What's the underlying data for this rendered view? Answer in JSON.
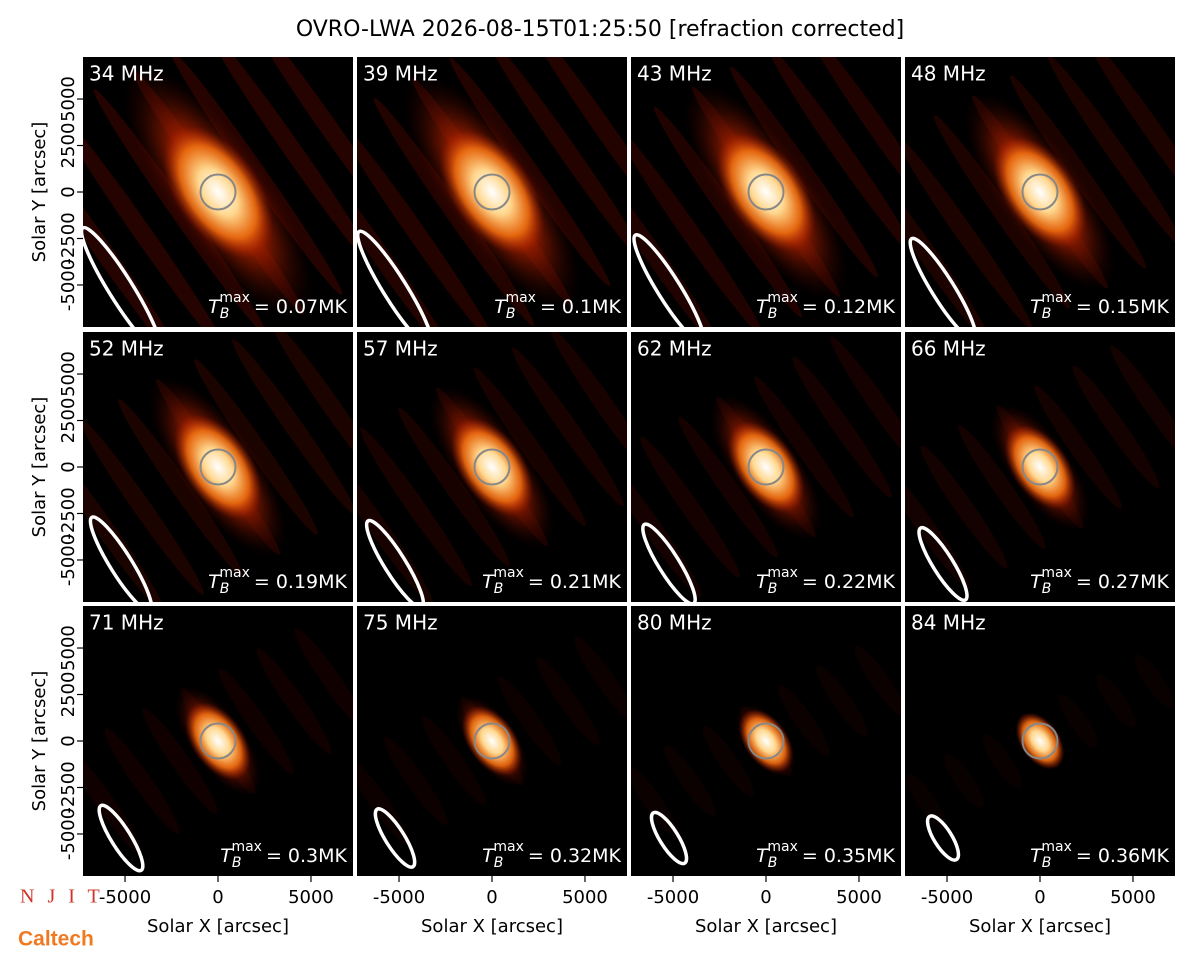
{
  "title": "OVRO-LWA 2026-08-15T01:25:50 [refraction corrected]",
  "logos": [
    "N J I T",
    "Caltech"
  ],
  "chart_data": [
    {
      "type": "image",
      "title": "34 MHz",
      "annotation": {
        "symbol": "T",
        "subscript": "B",
        "superscript": "max",
        "text": "= 0.07MK"
      },
      "xlim": [
        -7260,
        7260
      ],
      "ylim": [
        -7260,
        7260
      ],
      "yticks": [
        -5000,
        -2500,
        0,
        2500,
        5000
      ],
      "ylabel": "Solar Y [arcsec]"
    },
    {
      "type": "image",
      "title": "39 MHz",
      "annotation": {
        "symbol": "T",
        "subscript": "B",
        "superscript": "max",
        "text": "= 0.1MK"
      },
      "xlim": [
        -7260,
        7260
      ],
      "ylim": [
        -7260,
        7260
      ]
    },
    {
      "type": "image",
      "title": "43 MHz",
      "annotation": {
        "symbol": "T",
        "subscript": "B",
        "superscript": "max",
        "text": "= 0.12MK"
      },
      "xlim": [
        -7260,
        7260
      ],
      "ylim": [
        -7260,
        7260
      ]
    },
    {
      "type": "image",
      "title": "48 MHz",
      "annotation": {
        "symbol": "T",
        "subscript": "B",
        "superscript": "max",
        "text": "= 0.15MK"
      },
      "xlim": [
        -7260,
        7260
      ],
      "ylim": [
        -7260,
        7260
      ]
    },
    {
      "type": "image",
      "title": "52 MHz",
      "annotation": {
        "symbol": "T",
        "subscript": "B",
        "superscript": "max",
        "text": "= 0.19MK"
      },
      "xlim": [
        -7260,
        7260
      ],
      "ylim": [
        -7260,
        7260
      ],
      "yticks": [
        -5000,
        -2500,
        0,
        2500,
        5000
      ],
      "ylabel": "Solar Y [arcsec]"
    },
    {
      "type": "image",
      "title": "57 MHz",
      "annotation": {
        "symbol": "T",
        "subscript": "B",
        "superscript": "max",
        "text": "= 0.21MK"
      },
      "xlim": [
        -7260,
        7260
      ],
      "ylim": [
        -7260,
        7260
      ]
    },
    {
      "type": "image",
      "title": "62 MHz",
      "annotation": {
        "symbol": "T",
        "subscript": "B",
        "superscript": "max",
        "text": "= 0.22MK"
      },
      "xlim": [
        -7260,
        7260
      ],
      "ylim": [
        -7260,
        7260
      ]
    },
    {
      "type": "image",
      "title": "66 MHz",
      "annotation": {
        "symbol": "T",
        "subscript": "B",
        "superscript": "max",
        "text": "= 0.27MK"
      },
      "xlim": [
        -7260,
        7260
      ],
      "ylim": [
        -7260,
        7260
      ]
    },
    {
      "type": "image",
      "title": "71 MHz",
      "annotation": {
        "symbol": "T",
        "subscript": "B",
        "superscript": "max",
        "text": "= 0.3MK"
      },
      "xlim": [
        -7260,
        7260
      ],
      "ylim": [
        -7260,
        7260
      ],
      "yticks": [
        -5000,
        -2500,
        0,
        2500,
        5000
      ],
      "ylabel": "Solar Y [arcsec]",
      "xticks": [
        -5000,
        0,
        5000
      ],
      "xlabel": "Solar X [arcsec]"
    },
    {
      "type": "image",
      "title": "75 MHz",
      "annotation": {
        "symbol": "T",
        "subscript": "B",
        "superscript": "max",
        "text": "= 0.32MK"
      },
      "xlim": [
        -7260,
        7260
      ],
      "ylim": [
        -7260,
        7260
      ],
      "xticks": [
        -5000,
        0,
        5000
      ],
      "xlabel": "Solar X [arcsec]"
    },
    {
      "type": "image",
      "title": "80 MHz",
      "annotation": {
        "symbol": "T",
        "subscript": "B",
        "superscript": "max",
        "text": "= 0.35MK"
      },
      "xlim": [
        -7260,
        7260
      ],
      "ylim": [
        -7260,
        7260
      ],
      "xticks": [
        -5000,
        0,
        5000
      ],
      "xlabel": "Solar X [arcsec]"
    },
    {
      "type": "image",
      "title": "84 MHz",
      "annotation": {
        "symbol": "T",
        "subscript": "B",
        "superscript": "max",
        "text": "= 0.36MK"
      },
      "xlim": [
        -7260,
        7260
      ],
      "ylim": [
        -7260,
        7260
      ],
      "xticks": [
        -5000,
        0,
        5000
      ],
      "xlabel": "Solar X [arcsec]"
    }
  ]
}
